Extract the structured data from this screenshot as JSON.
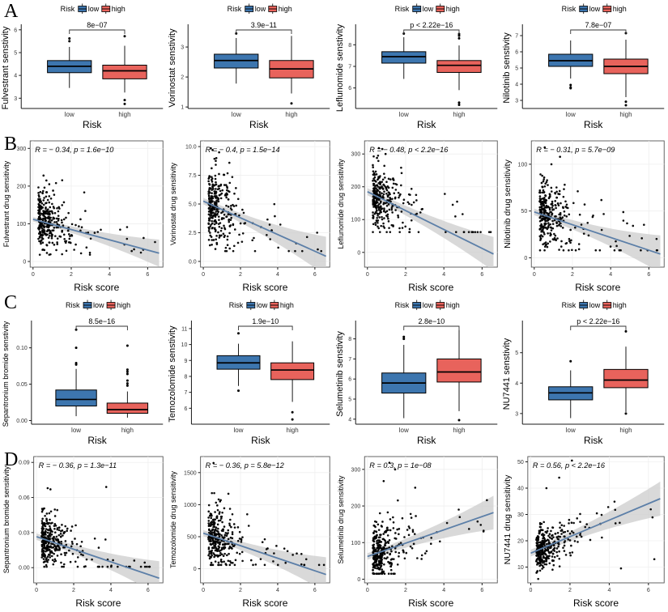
{
  "figure_labels": [
    "A",
    "B",
    "C",
    "D"
  ],
  "legend": {
    "title": "Risk",
    "low_label": "low",
    "high_label": "high"
  },
  "colors": {
    "low_fill": "#3D76AF",
    "high_fill": "#E8635C",
    "trend_line": "#5C7FA8",
    "ci_band": "#CCCCCC",
    "point": "#000000",
    "axis": "#1a1a1a",
    "tick_text": "#333333"
  },
  "chart_data": [
    {
      "row": "A",
      "col": 1,
      "type": "box",
      "title_drug": "Fulvestrant",
      "ylabel": "Fulvestrant senstivity",
      "xlabel": "Risk",
      "p_label": "8e−07",
      "categories": [
        "low",
        "high"
      ],
      "ytick_vals": [
        3,
        4,
        5,
        6
      ],
      "ytick_labels": [
        "3",
        "4",
        "5",
        "6"
      ],
      "ylim": [
        2.55,
        6.1
      ],
      "low": {
        "whislo": 3.45,
        "q1": 4.12,
        "med": 4.4,
        "q3": 4.65,
        "whishi": 5.25,
        "outliers": [
          5.5,
          5.62
        ]
      },
      "high": {
        "whislo": 3.25,
        "q1": 3.85,
        "med": 4.2,
        "q3": 4.45,
        "whishi": 5.3,
        "outliers": [
          5.72,
          2.92,
          2.75
        ]
      }
    },
    {
      "row": "A",
      "col": 2,
      "type": "box",
      "title_drug": "Vorinostat",
      "ylabel": "Vorinostat senstivity",
      "xlabel": "Risk",
      "p_label": "3.9e−11",
      "categories": [
        "low",
        "high"
      ],
      "ytick_vals": [
        1,
        2,
        3
      ],
      "ytick_labels": [
        "1",
        "2",
        "3"
      ],
      "ylim": [
        0.95,
        3.65
      ],
      "low": {
        "whislo": 1.78,
        "q1": 2.3,
        "med": 2.55,
        "q3": 2.76,
        "whishi": 3.3,
        "outliers": [
          3.45
        ]
      },
      "high": {
        "whislo": 1.45,
        "q1": 1.97,
        "med": 2.27,
        "q3": 2.55,
        "whishi": 3.37,
        "outliers": [
          1.12
        ]
      }
    },
    {
      "row": "A",
      "col": 3,
      "type": "box",
      "title_drug": "Leflunomide",
      "ylabel": "Leflunomide senstivity",
      "xlabel": "Risk",
      "p_label": "p < 2.22e−16",
      "categories": [
        "low",
        "high"
      ],
      "ytick_vals": [
        6,
        7,
        8
      ],
      "ytick_labels": [
        "6",
        "7",
        "8"
      ],
      "ylim": [
        5.05,
        8.8
      ],
      "low": {
        "whislo": 6.42,
        "q1": 7.15,
        "med": 7.45,
        "q3": 7.68,
        "whishi": 8.35,
        "outliers": [
          8.52
        ]
      },
      "high": {
        "whislo": 5.9,
        "q1": 6.72,
        "med": 7.05,
        "q3": 7.27,
        "whishi": 7.97,
        "outliers": [
          8.3,
          8.42,
          8.5,
          5.32,
          5.22
        ]
      }
    },
    {
      "row": "A",
      "col": 4,
      "type": "box",
      "title_drug": "Nilotinib",
      "ylabel": "Nilotinib senstivity",
      "xlabel": "Risk",
      "p_label": "7.8e−07",
      "categories": [
        "low",
        "high"
      ],
      "ytick_vals": [
        3,
        4,
        5,
        6,
        7
      ],
      "ytick_labels": [
        "3",
        "4",
        "5",
        "6",
        "7"
      ],
      "ylim": [
        2.5,
        7.5
      ],
      "low": {
        "whislo": 4.35,
        "q1": 5.1,
        "med": 5.45,
        "q3": 5.85,
        "whishi": 6.7,
        "outliers": [
          3.95,
          3.8,
          3.75
        ]
      },
      "high": {
        "whislo": 3.2,
        "q1": 4.65,
        "med": 5.1,
        "q3": 5.55,
        "whishi": 6.75,
        "outliers": [
          7.15,
          2.92,
          2.7
        ]
      }
    },
    {
      "row": "B",
      "col": 1,
      "type": "scatter",
      "title_drug": "Fulvestrant",
      "ylabel": "Fulvestrant  drug sensitivity",
      "xlabel": "Risk score",
      "annotation": "R = − 0.34, p = 1.6e−10",
      "xtick_vals": [
        0,
        2,
        4,
        6
      ],
      "xtick_labels": [
        "0",
        "2",
        "4",
        "6"
      ],
      "xlim": [
        -0.15,
        6.8
      ],
      "ytick_vals": [
        0,
        100,
        200,
        300
      ],
      "ytick_labels": [
        "0",
        "100",
        "200",
        "300"
      ],
      "ylim": [
        -15,
        320
      ],
      "trend": {
        "x": [
          0,
          6.6
        ],
        "y": [
          112,
          22
        ]
      },
      "band": {
        "hw0": 6,
        "hw1": 36
      },
      "cloud": {
        "n": 320,
        "seed": 11,
        "x_min": 0.28,
        "x_scale": 0.58,
        "noise": 36,
        "clamp": [
          18,
          232
        ],
        "extra": [
          [
            0.55,
            228
          ],
          [
            0.7,
            215
          ],
          [
            0.85,
            205
          ],
          [
            0.6,
            196
          ],
          [
            1.05,
            188
          ],
          [
            0.5,
            182
          ]
        ]
      }
    },
    {
      "row": "B",
      "col": 2,
      "type": "scatter",
      "title_drug": "Vorinostat",
      "ylabel": "Vorinostat  drug sensitivity",
      "xlabel": "Risk score",
      "annotation": "R = − 0.4, p = 1.5e−14",
      "xtick_vals": [
        0,
        2,
        4,
        6
      ],
      "xtick_labels": [
        "0",
        "2",
        "4",
        "6"
      ],
      "xlim": [
        -0.15,
        6.8
      ],
      "ytick_vals": [
        0,
        2.5,
        5,
        7.5,
        10
      ],
      "ytick_labels": [
        "0.0",
        "2.5",
        "5.0",
        "7.5",
        "10.0"
      ],
      "ylim": [
        -0.5,
        10.5
      ],
      "trend": {
        "x": [
          0,
          6.6
        ],
        "y": [
          5.25,
          0.45
        ]
      },
      "band": {
        "hw0": 0.28,
        "hw1": 1.7
      },
      "cloud": {
        "n": 320,
        "seed": 22,
        "x_min": 0.28,
        "x_scale": 0.58,
        "noise": 1.55,
        "clamp": [
          0.9,
          9.85
        ],
        "extra": [
          [
            0.5,
            9.7
          ],
          [
            0.85,
            9.5
          ],
          [
            0.7,
            9.0
          ]
        ]
      }
    },
    {
      "row": "B",
      "col": 3,
      "type": "scatter",
      "title_drug": "Leflunomide",
      "ylabel": "Leflunomide  drug sensitivity",
      "xlabel": "Risk score",
      "annotation": "R = − 0.48, p < 2.2e−16",
      "xtick_vals": [
        0,
        2,
        4,
        6
      ],
      "xtick_labels": [
        "0",
        "2",
        "4",
        "6"
      ],
      "xlim": [
        -0.15,
        6.8
      ],
      "ytick_vals": [
        0,
        100,
        200,
        300
      ],
      "ytick_labels": [
        "0",
        "100",
        "200",
        "300"
      ],
      "ylim": [
        -45,
        340
      ],
      "trend": {
        "x": [
          0,
          6.6
        ],
        "y": [
          185,
          -5
        ]
      },
      "band": {
        "hw0": 11,
        "hw1": 52
      },
      "cloud": {
        "n": 320,
        "seed": 33,
        "x_min": 0.28,
        "x_scale": 0.58,
        "noise": 48,
        "clamp": [
          62,
          328
        ],
        "extra": [
          [
            0.6,
            318
          ],
          [
            0.95,
            300
          ],
          [
            0.5,
            288
          ]
        ]
      }
    },
    {
      "row": "B",
      "col": 4,
      "type": "scatter",
      "title_drug": "Nilotinib",
      "ylabel": "Nilotinib drug sensitivity",
      "xlabel": "Risk score",
      "annotation": "R = − 0.31, p = 5.7e−09",
      "xtick_vals": [
        0,
        2,
        4,
        6
      ],
      "xtick_labels": [
        "0",
        "2",
        "4",
        "6"
      ],
      "xlim": [
        -0.15,
        6.8
      ],
      "ytick_vals": [
        0,
        50,
        100
      ],
      "ytick_labels": [
        "0",
        "50",
        "100"
      ],
      "ylim": [
        -10,
        125
      ],
      "trend": {
        "x": [
          0,
          6.6
        ],
        "y": [
          49,
          4
        ]
      },
      "band": {
        "hw0": 3.5,
        "hw1": 20
      },
      "cloud": {
        "n": 320,
        "seed": 44,
        "x_min": 0.28,
        "x_scale": 0.58,
        "noise": 17,
        "clamp": [
          8,
          122
        ],
        "extra": [
          [
            0.55,
            118
          ],
          [
            1.35,
            108
          ],
          [
            0.9,
            100
          ]
        ]
      }
    },
    {
      "row": "C",
      "col": 1,
      "type": "box",
      "title_drug": "Sepantronium bromide",
      "ylabel": "Sepantronium bromide senstivity",
      "xlabel": "Risk",
      "p_label": "8.5e−16",
      "categories": [
        "low",
        "high"
      ],
      "ytick_vals": [
        0,
        0.05,
        0.1
      ],
      "ytick_labels": [
        "0.00",
        "0.05",
        "0.10"
      ],
      "ylim": [
        -0.005,
        0.133
      ],
      "low": {
        "whislo": 0.006,
        "q1": 0.02,
        "med": 0.029,
        "q3": 0.042,
        "whishi": 0.071,
        "outliers": [
          0.077,
          0.079,
          0.1,
          0.125
        ]
      },
      "high": {
        "whislo": 0.004,
        "q1": 0.01,
        "med": 0.015,
        "q3": 0.024,
        "whishi": 0.04,
        "outliers": [
          0.048,
          0.051,
          0.055,
          0.064,
          0.067,
          0.07,
          0.103
        ]
      }
    },
    {
      "row": "C",
      "col": 2,
      "type": "box",
      "title_drug": "Temozolomide",
      "ylabel": "Temozolomide senstivity",
      "xlabel": "Risk",
      "p_label": "1.9e−10",
      "categories": [
        "low",
        "high"
      ],
      "ytick_vals": [
        6,
        7,
        8,
        9,
        10,
        11
      ],
      "ytick_labels": [
        "6",
        "7",
        "8",
        "9",
        "10",
        "11"
      ],
      "ylim": [
        5.0,
        11.3
      ],
      "low": {
        "whislo": 7.4,
        "q1": 8.45,
        "med": 8.85,
        "q3": 9.3,
        "whishi": 10.05,
        "outliers": [
          10.7,
          7.1
        ]
      },
      "high": {
        "whislo": 6.4,
        "q1": 7.8,
        "med": 8.4,
        "q3": 8.85,
        "whishi": 10.2,
        "outliers": [
          5.75,
          5.3
        ]
      }
    },
    {
      "row": "C",
      "col": 3,
      "type": "box",
      "title_drug": "Selumetinib",
      "ylabel": "Selumetinib senstivity",
      "xlabel": "Risk",
      "p_label": "2.8e−10",
      "categories": [
        "low",
        "high"
      ],
      "ytick_vals": [
        4,
        5,
        6,
        7,
        8
      ],
      "ytick_labels": [
        "4",
        "5",
        "6",
        "7",
        "8"
      ],
      "ylim": [
        3.75,
        8.75
      ],
      "low": {
        "whislo": 4.05,
        "q1": 5.3,
        "med": 5.8,
        "q3": 6.3,
        "whishi": 7.7,
        "outliers": [
          8.0,
          8.1
        ]
      },
      "high": {
        "whislo": 4.4,
        "q1": 5.85,
        "med": 6.35,
        "q3": 7.0,
        "whishi": 8.45,
        "outliers": [
          3.95
        ]
      }
    },
    {
      "row": "C",
      "col": 4,
      "type": "box",
      "title_drug": "NU7441",
      "ylabel": "NU7441 senstivity",
      "xlabel": "Risk",
      "p_label": "p < 2.22e−16",
      "categories": [
        "low",
        "high"
      ],
      "ytick_vals": [
        3,
        4,
        5
      ],
      "ytick_labels": [
        "3",
        "4",
        "5"
      ],
      "ylim": [
        2.65,
        5.95
      ],
      "low": {
        "whislo": 2.85,
        "q1": 3.45,
        "med": 3.68,
        "q3": 3.88,
        "whishi": 4.42,
        "outliers": [
          4.72
        ]
      },
      "high": {
        "whislo": 3.05,
        "q1": 3.85,
        "med": 4.1,
        "q3": 4.45,
        "whishi": 5.2,
        "outliers": [
          5.7,
          3.0
        ]
      }
    },
    {
      "row": "D",
      "col": 1,
      "type": "scatter",
      "title_drug": "Sepantronium bromide",
      "ylabel": "Sepantronium bromide  sensitivity",
      "xlabel": "Risk score",
      "annotation": "R = − 0.36, p = 1.3e−11",
      "xtick_vals": [
        0,
        2,
        4,
        6
      ],
      "xtick_labels": [
        "0",
        "2",
        "4",
        "6"
      ],
      "xlim": [
        -0.15,
        6.8
      ],
      "ytick_vals": [
        0,
        0.03,
        0.06,
        0.09
      ],
      "ytick_labels": [
        "0.00",
        "0.03",
        "0.06",
        "0.09"
      ],
      "ylim": [
        -0.013,
        0.095
      ],
      "trend": {
        "x": [
          0,
          6.6
        ],
        "y": [
          0.0265,
          -0.009
        ]
      },
      "band": {
        "hw0": 0.0028,
        "hw1": 0.0145
      },
      "cloud": {
        "n": 320,
        "seed": 55,
        "x_min": 0.28,
        "x_scale": 0.58,
        "noise": 0.011,
        "clamp": [
          0.0008,
          0.057
        ],
        "extra": [
          [
            3.75,
            0.069
          ],
          [
            0.6,
            0.068
          ],
          [
            0.75,
            0.067
          ]
        ]
      }
    },
    {
      "row": "D",
      "col": 2,
      "type": "scatter",
      "title_drug": "Temozolomide",
      "ylabel": "Temozolomide  drug sensitivity",
      "xlabel": "Risk score",
      "annotation": "R = − 0.36, p = 5.8e−12",
      "xtick_vals": [
        0,
        2,
        4,
        6
      ],
      "xtick_labels": [
        "0",
        "2",
        "4",
        "6"
      ],
      "xlim": [
        -0.15,
        6.8
      ],
      "ytick_vals": [
        0,
        500,
        1000,
        1500
      ],
      "ytick_labels": [
        "0",
        "500",
        "1000",
        "1500"
      ],
      "ylim": [
        -220,
        1750
      ],
      "trend": {
        "x": [
          0,
          6.6
        ],
        "y": [
          555,
          -90
        ]
      },
      "band": {
        "hw0": 48,
        "hw1": 270
      },
      "cloud": {
        "n": 320,
        "seed": 66,
        "x_min": 0.28,
        "x_scale": 0.58,
        "noise": 210,
        "clamp": [
          60,
          1180
        ],
        "extra": [
          [
            0.55,
            1650
          ],
          [
            1.35,
            1170
          ],
          [
            0.9,
            1050
          ]
        ]
      }
    },
    {
      "row": "D",
      "col": 3,
      "type": "scatter",
      "title_drug": "Selumetinib",
      "ylabel": "Selumetinib  drug sensitivity",
      "xlabel": "Risk score",
      "annotation": "R = 0.3, p = 1e−08",
      "xtick_vals": [
        0,
        2,
        4,
        6
      ],
      "xtick_labels": [
        "0",
        "2",
        "4",
        "6"
      ],
      "xlim": [
        -0.15,
        6.8
      ],
      "ytick_vals": [
        0,
        100,
        200,
        300
      ],
      "ytick_labels": [
        "0",
        "100",
        "200",
        "300"
      ],
      "ylim": [
        -10,
        335
      ],
      "trend": {
        "x": [
          0,
          6.6
        ],
        "y": [
          62,
          182
        ]
      },
      "band": {
        "hw0": 9,
        "hw1": 46
      },
      "cloud": {
        "n": 320,
        "seed": 77,
        "x_min": 0.28,
        "x_scale": 0.58,
        "noise": 42,
        "clamp": [
          15,
          275
        ],
        "extra": [
          [
            1.15,
            318
          ],
          [
            1.45,
            300
          ],
          [
            0.85,
            268
          ],
          [
            2.5,
            250
          ]
        ]
      }
    },
    {
      "row": "D",
      "col": 4,
      "type": "scatter",
      "title_drug": "NU7441",
      "ylabel": "NU7441  drug sensitivity",
      "xlabel": "Risk score",
      "annotation": "R = 0.56, p < 2.2e−16",
      "xtick_vals": [
        0,
        2,
        4,
        6
      ],
      "xtick_labels": [
        "0",
        "2",
        "4",
        "6"
      ],
      "xlim": [
        -0.15,
        6.8
      ],
      "ytick_vals": [
        10,
        20,
        30,
        40,
        50
      ],
      "ytick_labels": [
        "10",
        "20",
        "30",
        "40",
        "50"
      ],
      "ylim": [
        4,
        52
      ],
      "trend": {
        "x": [
          0,
          6.6
        ],
        "y": [
          15.3,
          36
        ]
      },
      "band": {
        "hw0": 1.3,
        "hw1": 6.5
      },
      "cloud": {
        "n": 320,
        "seed": 88,
        "x_min": 0.28,
        "x_scale": 0.58,
        "noise": 4.3,
        "clamp": [
          5.5,
          38
        ],
        "extra": [
          [
            2.1,
            50.5
          ],
          [
            1.45,
            44
          ],
          [
            0.8,
            40
          ],
          [
            6.3,
            13
          ],
          [
            4.6,
            9.5
          ]
        ]
      }
    }
  ]
}
